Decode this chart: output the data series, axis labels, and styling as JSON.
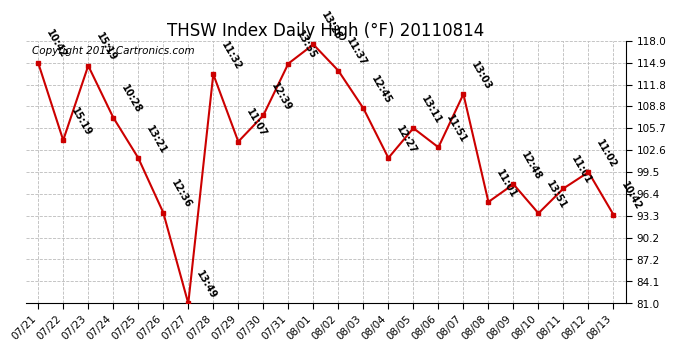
{
  "title": "THSW Index Daily High (°F) 20110814",
  "copyright": "Copyright 2011 Cartronics.com",
  "dates": [
    "07/21",
    "07/22",
    "07/23",
    "07/24",
    "07/25",
    "07/26",
    "07/27",
    "07/28",
    "07/29",
    "07/30",
    "07/31",
    "08/01",
    "08/02",
    "08/03",
    "08/04",
    "08/05",
    "08/06",
    "08/07",
    "08/08",
    "08/09",
    "08/10",
    "08/11",
    "08/12",
    "08/13"
  ],
  "values": [
    114.9,
    104.0,
    114.5,
    107.2,
    101.5,
    93.8,
    81.0,
    113.3,
    103.8,
    107.5,
    114.8,
    117.5,
    113.8,
    108.5,
    101.5,
    105.7,
    103.0,
    110.5,
    95.3,
    97.8,
    93.7,
    97.2,
    99.5,
    93.5
  ],
  "labels": [
    "10:42",
    "15:19",
    "15:19",
    "10:28",
    "13:21",
    "12:36",
    "13:49",
    "11:32",
    "11:07",
    "12:39",
    "13:55",
    "13:26",
    "11:37",
    "12:45",
    "12:27",
    "13:11",
    "11:51",
    "13:03",
    "11:01",
    "12:48",
    "13:51",
    "11:01",
    "11:02",
    "10:42"
  ],
  "ylim": [
    81.0,
    118.0
  ],
  "yticks": [
    81.0,
    84.1,
    87.2,
    90.2,
    93.3,
    96.4,
    99.5,
    102.6,
    105.7,
    108.8,
    111.8,
    114.9,
    118.0
  ],
  "line_color": "#cc0000",
  "marker_color": "#cc0000",
  "bg_color": "#ffffff",
  "grid_color": "#bbbbbb",
  "title_fontsize": 12,
  "label_fontsize": 7,
  "tick_fontsize": 7.5,
  "copyright_fontsize": 7.5
}
